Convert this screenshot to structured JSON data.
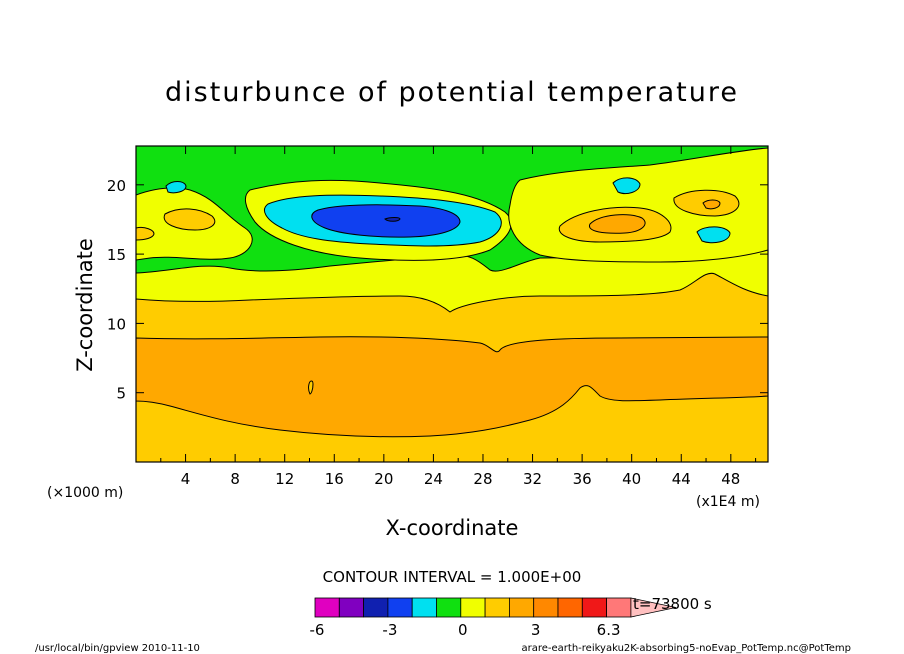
{
  "chart_data": {
    "type": "heatmap",
    "title": "disturbunce of potential temperature",
    "xlabel": "X-coordinate",
    "ylabel": "Z-coordinate",
    "x_unit_left": "(×1000 m)",
    "x_unit_right": "(x1E4 m)",
    "x_ticks": [
      "4",
      "8",
      "12",
      "16",
      "20",
      "24",
      "28",
      "32",
      "36",
      "40",
      "44",
      "48"
    ],
    "y_ticks": [
      "5",
      "10",
      "15",
      "20"
    ],
    "xlim": [
      0,
      51
    ],
    "ylim": [
      0,
      22.8
    ],
    "contour_interval_label": "CONTOUR INTERVAL = 1.000E+00",
    "time_label": "t=73800 s",
    "colorbar": {
      "labels": [
        "-6",
        "-3",
        "0",
        "3",
        "6.3"
      ],
      "colors": [
        "#e000c0",
        "#8000c0",
        "#1020b0",
        "#1040f0",
        "#00e0f0",
        "#10e010",
        "#f0ff00",
        "#ffcc00",
        "#ffa800",
        "#ff8800",
        "#ff6600",
        "#f01818",
        "#ff7878",
        "#ffc0c0"
      ]
    },
    "regions": {
      "surface_layer": {
        "level": 2,
        "color": "#ffcc00"
      },
      "lower_warm": {
        "level": 3,
        "color": "#ffa800"
      },
      "mid_layer": {
        "level": 2,
        "color": "#ffcc00"
      },
      "upper_layer": {
        "level": 1,
        "color": "#f0ff00"
      },
      "upper_band": {
        "level": 0,
        "color": "#10e010"
      },
      "cold_cell_outer": {
        "level": -1,
        "color": "#00e0f0"
      },
      "cold_cell_inner": {
        "level": -2,
        "color": "#1040f0"
      },
      "cold_core": {
        "level": -3,
        "color": "#1020b0"
      },
      "warm_cell_outer": {
        "level": 2,
        "color": "#ffcc00"
      },
      "warm_cell_inner": {
        "level": 3,
        "color": "#ffa800"
      }
    }
  },
  "footer": {
    "left": "/usr/local/bin/gpview  2010-11-10",
    "right": "arare-earth-reikyaku2K-absorbing5-noEvap_PotTemp.nc@PotTemp"
  }
}
